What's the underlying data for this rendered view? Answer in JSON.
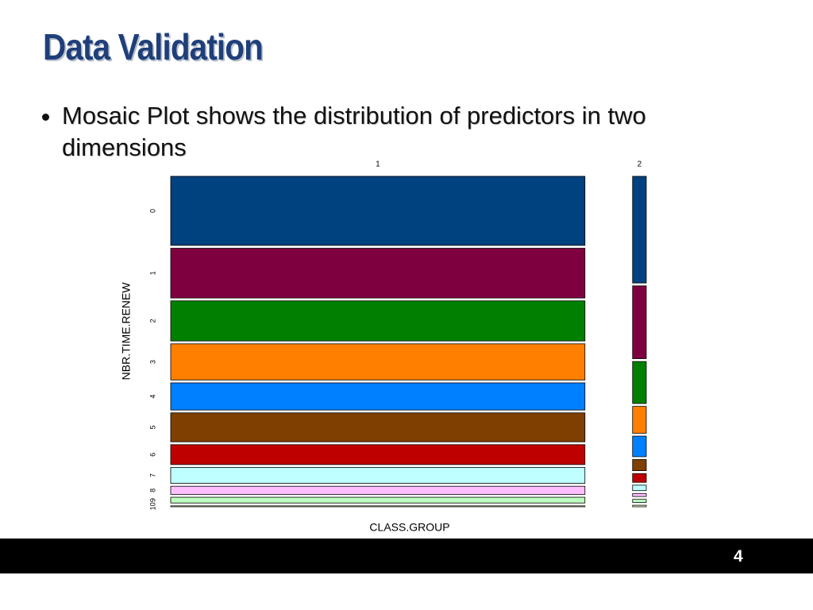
{
  "slide": {
    "title": "Data Validation",
    "bullets": [
      "Mosaic Plot shows the distribution of predictors in two dimensions"
    ],
    "page_number": "4"
  },
  "chart_data": {
    "type": "mosaic",
    "x_label": "CLASS.GROUP",
    "y_label": "NBR.TIME.RENEW",
    "categories": [
      "0",
      "1",
      "2",
      "3",
      "4",
      "5",
      "6",
      "7",
      "8",
      "9",
      "10"
    ],
    "colors": [
      "#00417f",
      "#7f003f",
      "#007f00",
      "#ff7f00",
      "#0080ff",
      "#7f3f00",
      "#bf0000",
      "#bfffff",
      "#ffbfff",
      "#bfffbf",
      "#ffffbf"
    ],
    "column_shares": [
      96.8,
      3.2
    ],
    "series": [
      {
        "name": "1",
        "values": [
          22.9,
          16.5,
          13.3,
          12.0,
          9.0,
          9.6,
          6.6,
          5.3,
          2.7,
          1.9,
          0.3
        ]
      },
      {
        "name": "2",
        "values": [
          35.3,
          24.1,
          13.9,
          8.9,
          6.8,
          3.7,
          2.9,
          1.8,
          1.0,
          1.0,
          0.5
        ]
      }
    ]
  }
}
